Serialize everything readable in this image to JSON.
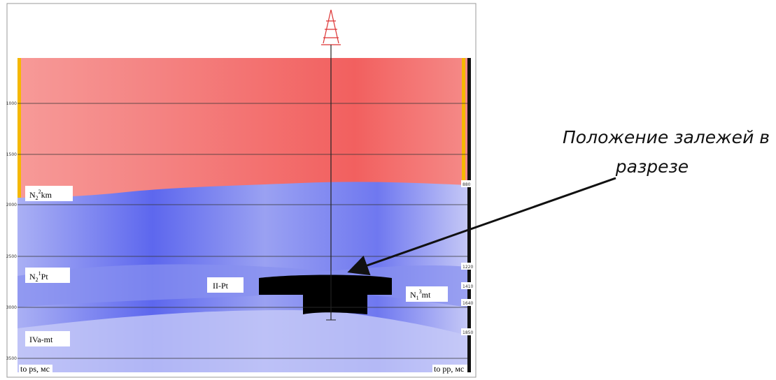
{
  "section": {
    "depth_labels": [
      "1000",
      "1500",
      "2000",
      "2500",
      "3000",
      "3500"
    ],
    "layers": [
      {
        "base": "N",
        "sub": "2",
        "sup": "2",
        "suffix": "km"
      },
      {
        "base": "N",
        "sub": "2",
        "sup": "1",
        "suffix": "Pt"
      },
      {
        "base": "II-Pt"
      },
      {
        "base": "N",
        "sub": "1",
        "sup": "3",
        "suffix": "mt"
      },
      {
        "base": "IVa-mt"
      }
    ],
    "right_labels": [
      "880",
      "1220",
      "1410",
      "1640",
      "1850"
    ],
    "bottom_left": "to ps, мс",
    "bottom_right": "to pp, мс"
  },
  "annotation": {
    "lines": [
      "Положение залежей в",
      "разрезе"
    ]
  }
}
